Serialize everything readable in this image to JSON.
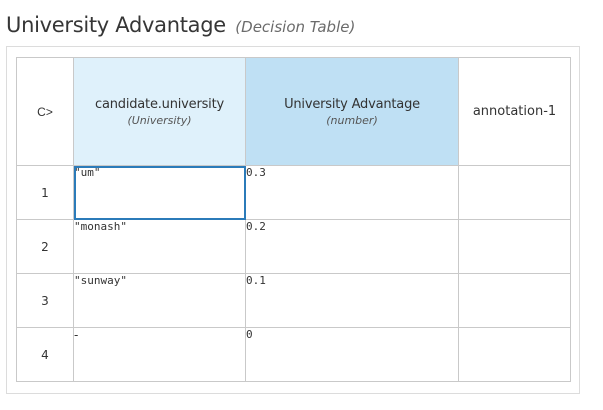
{
  "header": {
    "title": "University Advantage",
    "subtitle": "(Decision Table)"
  },
  "table": {
    "hit_policy": "C>",
    "input_column": {
      "name": "candidate.university",
      "type": "(University)"
    },
    "output_column": {
      "name": "University Advantage",
      "type": "(number)"
    },
    "annotation_column": {
      "name": "annotation-1"
    },
    "rows": [
      {
        "num": "1",
        "input": "\"um\"",
        "output": "0.3",
        "annotation": ""
      },
      {
        "num": "2",
        "input": "\"monash\"",
        "output": "0.2",
        "annotation": ""
      },
      {
        "num": "3",
        "input": "\"sunway\"",
        "output": "0.1",
        "annotation": ""
      },
      {
        "num": "4",
        "input": "-",
        "output": "0",
        "annotation": ""
      }
    ],
    "colors": {
      "input_header_bg": "#dff1fb",
      "output_header_bg": "#bfe0f4",
      "selected_border": "#2b7bb9"
    }
  }
}
